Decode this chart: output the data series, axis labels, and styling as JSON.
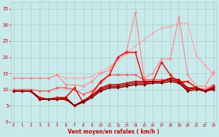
{
  "x": [
    0,
    1,
    2,
    3,
    4,
    5,
    6,
    7,
    8,
    9,
    10,
    11,
    12,
    13,
    14,
    15,
    16,
    17,
    18,
    19,
    20,
    21,
    22,
    23
  ],
  "series": [
    {
      "label": "line1_lightest_pink",
      "y": [
        13.5,
        13.5,
        13.5,
        13.5,
        13.5,
        14.5,
        13.5,
        13.5,
        13.5,
        14.0,
        15.5,
        17.0,
        19.0,
        21.0,
        23.5,
        25.5,
        27.5,
        29.0,
        29.5,
        30.5,
        30.5,
        20.5,
        17.5,
        14.5
      ],
      "color": "#FFAAAA",
      "lw": 1.0
    },
    {
      "label": "line2_medium_pink",
      "y": [
        13.5,
        13.5,
        13.5,
        13.5,
        13.5,
        14.5,
        11.5,
        11.5,
        11.0,
        12.5,
        15.0,
        16.0,
        20.0,
        22.0,
        34.0,
        13.5,
        15.0,
        19.5,
        19.5,
        32.5,
        14.5,
        11.0,
        11.0,
        15.5
      ],
      "color": "#FF8888",
      "lw": 0.9
    },
    {
      "label": "line3_medium_red",
      "y": [
        10.0,
        10.0,
        10.0,
        9.5,
        9.5,
        10.5,
        10.5,
        10.0,
        8.5,
        9.5,
        12.0,
        14.5,
        14.5,
        14.5,
        14.5,
        13.0,
        13.0,
        13.0,
        13.0,
        12.5,
        12.5,
        10.5,
        10.0,
        11.5
      ],
      "color": "#FF5555",
      "lw": 1.0
    },
    {
      "label": "line4_bright_red_spiky",
      "y": [
        9.5,
        9.5,
        9.5,
        7.5,
        7.0,
        7.5,
        7.5,
        10.5,
        6.0,
        8.5,
        12.5,
        14.5,
        20.0,
        21.5,
        21.5,
        12.0,
        12.5,
        18.5,
        14.5,
        12.0,
        12.5,
        10.5,
        9.5,
        11.0
      ],
      "color": "#EE1111",
      "lw": 1.2
    },
    {
      "label": "line5_dark_red_1",
      "y": [
        9.5,
        9.5,
        9.5,
        7.0,
        7.0,
        7.0,
        7.5,
        5.0,
        6.5,
        8.0,
        10.5,
        11.5,
        11.5,
        12.0,
        12.5,
        12.5,
        12.5,
        12.5,
        13.5,
        13.0,
        10.5,
        10.5,
        9.5,
        10.5
      ],
      "color": "#CC0000",
      "lw": 1.2
    },
    {
      "label": "line6_dark_red_2",
      "y": [
        9.5,
        9.5,
        9.5,
        7.0,
        7.0,
        7.0,
        7.0,
        5.0,
        6.5,
        8.0,
        10.0,
        11.0,
        11.0,
        11.5,
        12.0,
        12.0,
        12.5,
        12.5,
        13.0,
        12.5,
        10.0,
        10.5,
        9.5,
        10.5
      ],
      "color": "#AA0000",
      "lw": 1.2
    },
    {
      "label": "line7_darkest_red",
      "y": [
        9.5,
        9.5,
        9.5,
        7.0,
        7.0,
        7.0,
        7.0,
        5.0,
        6.0,
        7.5,
        9.5,
        10.5,
        10.5,
        11.0,
        11.5,
        11.5,
        12.0,
        12.0,
        12.5,
        12.0,
        9.5,
        10.0,
        9.5,
        10.0
      ],
      "color": "#880000",
      "lw": 1.2
    }
  ],
  "xlim": [
    -0.3,
    23.3
  ],
  "ylim": [
    0,
    37
  ],
  "yticks": [
    0,
    5,
    10,
    15,
    20,
    25,
    30,
    35
  ],
  "xticks": [
    0,
    1,
    2,
    3,
    4,
    5,
    6,
    7,
    8,
    9,
    10,
    11,
    12,
    13,
    14,
    15,
    16,
    17,
    18,
    19,
    20,
    21,
    22,
    23
  ],
  "xlabel": "Vent moyen/en rafales ( km/h )",
  "bg_color": "#C8EAEA",
  "grid_color": "#AACCCC",
  "tick_color": "#CC0000",
  "label_color": "#CC0000",
  "figsize": [
    3.2,
    2.0
  ],
  "dpi": 100
}
